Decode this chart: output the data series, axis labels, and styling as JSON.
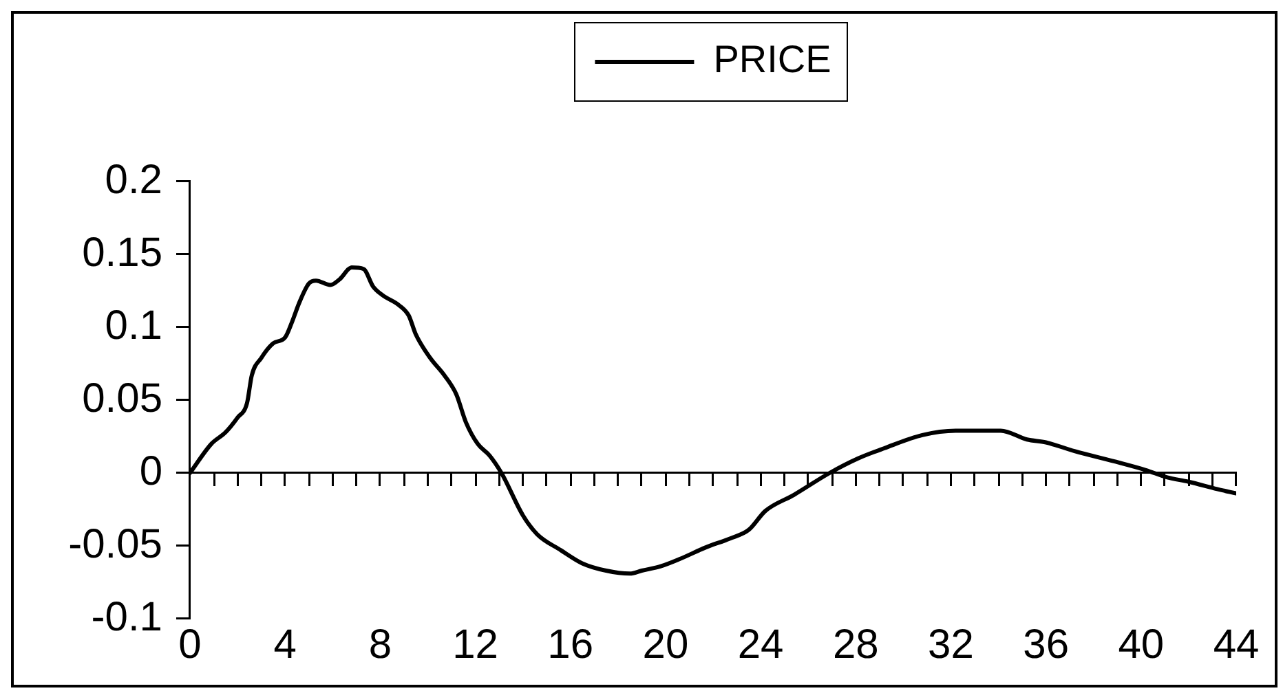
{
  "chart_data": {
    "type": "line",
    "legend": "top",
    "marker": "none",
    "x": [
      0,
      0.9,
      1.5,
      2.0,
      2.4,
      2.6,
      3.0,
      3.5,
      4.0,
      4.3,
      4.6,
      5.0,
      5.3,
      5.9,
      6.3,
      6.8,
      7.3,
      7.7,
      8.1,
      8.8,
      9.2,
      9.5,
      10.1,
      10.7,
      11.2,
      11.6,
      12.1,
      12.6,
      13.1,
      14.0,
      14.6,
      15.6,
      16.5,
      17.5,
      18.5,
      19.0,
      19.8,
      20.6,
      21.7,
      22.7,
      23.5,
      24.2,
      25.4,
      26.9,
      28.1,
      29.2,
      30.8,
      32.2,
      34.1,
      35.2,
      36.0,
      37.2,
      39.1,
      40.2,
      41.1,
      42.0,
      43.2,
      44.0
    ],
    "series": [
      {
        "name": "PRICE",
        "color": "#000000",
        "values": [
          0,
          0.02,
          0.028,
          0.038,
          0.048,
          0.067,
          0.079,
          0.089,
          0.093,
          0.104,
          0.117,
          0.13,
          0.132,
          0.129,
          0.133,
          0.141,
          0.14,
          0.128,
          0.122,
          0.115,
          0.108,
          0.095,
          0.079,
          0.067,
          0.054,
          0.035,
          0.02,
          0.012,
          0.0,
          -0.029,
          -0.042,
          -0.053,
          -0.062,
          -0.067,
          -0.069,
          -0.067,
          -0.064,
          -0.059,
          -0.051,
          -0.045,
          -0.039,
          -0.026,
          -0.015,
          0.0,
          0.01,
          0.017,
          0.026,
          0.029,
          0.029,
          0.023,
          0.021,
          0.015,
          0.007,
          0.002,
          -0.003,
          -0.006,
          -0.011,
          -0.014
        ]
      }
    ],
    "xlim": [
      0,
      44
    ],
    "xticks": [
      0,
      {
        "value": 1,
        "label": null
      },
      {
        "value": 2,
        "label": null
      },
      {
        "value": 3,
        "label": null
      },
      4,
      {
        "value": 5,
        "label": null
      },
      {
        "value": 6,
        "label": null
      },
      {
        "value": 7,
        "label": null
      },
      8,
      {
        "value": 9,
        "label": null
      },
      {
        "value": 10,
        "label": null
      },
      {
        "value": 11,
        "label": null
      },
      12,
      {
        "value": 13,
        "label": null
      },
      {
        "value": 14,
        "label": null
      },
      {
        "value": 15,
        "label": null
      },
      16,
      {
        "value": 17,
        "label": null
      },
      {
        "value": 18,
        "label": null
      },
      {
        "value": 19,
        "label": null
      },
      20,
      {
        "value": 21,
        "label": null
      },
      {
        "value": 22,
        "label": null
      },
      {
        "value": 23,
        "label": null
      },
      24,
      {
        "value": 25,
        "label": null
      },
      {
        "value": 26,
        "label": null
      },
      {
        "value": 27,
        "label": null
      },
      28,
      {
        "value": 29,
        "label": null
      },
      {
        "value": 30,
        "label": null
      },
      {
        "value": 31,
        "label": null
      },
      32,
      {
        "value": 33,
        "label": null
      },
      {
        "value": 34,
        "label": null
      },
      {
        "value": 35,
        "label": null
      },
      36,
      {
        "value": 37,
        "label": null
      },
      {
        "value": 38,
        "label": null
      },
      {
        "value": 39,
        "label": null
      },
      40,
      {
        "value": 41,
        "label": null
      },
      {
        "value": 42,
        "label": null
      },
      {
        "value": 43,
        "label": null
      },
      44
    ],
    "ylim": [
      -0.1,
      0.2
    ],
    "yticks": [
      -0.1,
      -0.05,
      0,
      0.05,
      0.1,
      0.15,
      0.2
    ]
  }
}
